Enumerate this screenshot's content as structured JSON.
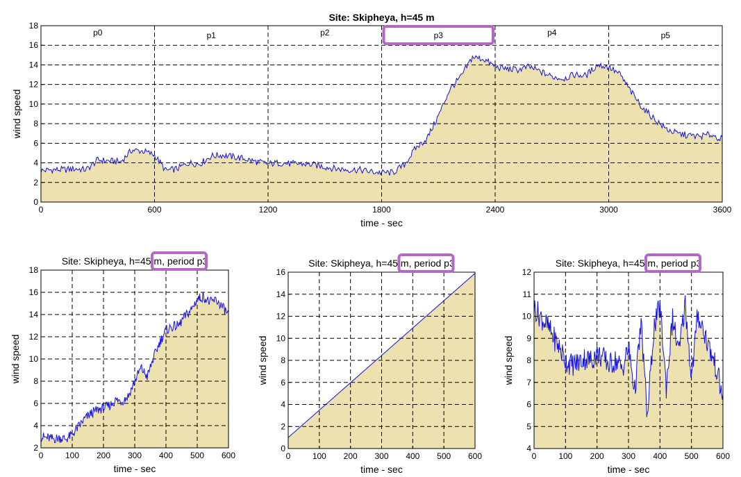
{
  "chart_data": [
    {
      "type": "area",
      "title": "Site: Skipheya, h=45 m",
      "xlabel": "time - sec",
      "ylabel": "wind speed",
      "xlim": [
        0,
        3600
      ],
      "ylim": [
        0,
        18
      ],
      "xticks": [
        0,
        600,
        1200,
        1800,
        2400,
        3000,
        3600
      ],
      "yticks": [
        0,
        2,
        4,
        6,
        8,
        10,
        12,
        14,
        16,
        18
      ],
      "grid": true,
      "period_labels": [
        "p0",
        "p1",
        "p2",
        "p3",
        "p4",
        "p5"
      ],
      "period_boundaries": [
        600,
        1200,
        1800,
        2400,
        3000
      ],
      "highlighted_period": "p3",
      "series": [
        {
          "x": [
            0,
            60,
            120,
            180,
            240,
            300,
            360,
            420,
            480,
            540,
            600,
            660,
            720,
            780,
            840,
            900,
            960,
            1020,
            1080,
            1140,
            1200,
            1260,
            1320,
            1380,
            1440,
            1500,
            1560,
            1620,
            1680,
            1740,
            1800,
            1860,
            1920,
            1980,
            2040,
            2100,
            2160,
            2220,
            2280,
            2340,
            2400,
            2460,
            2520,
            2580,
            2640,
            2700,
            2760,
            2820,
            2880,
            2940,
            3000,
            3060,
            3120,
            3180,
            3240,
            3300,
            3360,
            3420,
            3480,
            3540,
            3600
          ],
          "values": [
            3.2,
            3.3,
            3.3,
            3.4,
            3.3,
            4.3,
            4.2,
            4.1,
            5.3,
            5.2,
            4.8,
            3.2,
            3.4,
            4.0,
            3.9,
            4.7,
            4.8,
            4.6,
            4.4,
            4.1,
            3.9,
            4.0,
            3.9,
            3.9,
            3.8,
            3.6,
            3.4,
            3.3,
            3.3,
            3.1,
            3.0,
            3.0,
            3.8,
            5.5,
            6.5,
            8.8,
            11.5,
            12.8,
            14.8,
            14.6,
            13.8,
            13.6,
            13.5,
            13.8,
            13.3,
            12.8,
            12.6,
            13.0,
            12.9,
            14.0,
            13.8,
            13.0,
            11.2,
            9.6,
            8.5,
            7.5,
            7.0,
            6.8,
            6.7,
            6.9,
            6.4
          ]
        }
      ]
    },
    {
      "type": "area",
      "title": "Site: Skipheya, h=45 m, period p3",
      "xlabel": "time - sec",
      "ylabel": "wind speed",
      "xlim": [
        0,
        600
      ],
      "ylim": [
        2,
        18
      ],
      "xticks": [
        0,
        100,
        200,
        300,
        400,
        500,
        600
      ],
      "yticks": [
        2,
        4,
        6,
        8,
        10,
        12,
        14,
        16,
        18
      ],
      "grid": true,
      "highlight_text": "period p3",
      "series": [
        {
          "x": [
            0,
            20,
            40,
            60,
            80,
            100,
            120,
            140,
            160,
            180,
            200,
            220,
            240,
            260,
            280,
            300,
            320,
            340,
            360,
            380,
            400,
            420,
            440,
            460,
            480,
            500,
            520,
            540,
            560,
            580,
            600
          ],
          "values": [
            3.0,
            2.9,
            2.8,
            2.9,
            2.8,
            3.2,
            3.9,
            4.6,
            5.1,
            5.4,
            5.6,
            5.8,
            6.3,
            6.2,
            6.7,
            8.0,
            9.2,
            8.4,
            10.1,
            11.5,
            12.6,
            12.9,
            13.0,
            13.8,
            14.4,
            15.4,
            15.6,
            15.1,
            15.3,
            14.7,
            14.0
          ]
        }
      ]
    },
    {
      "type": "area",
      "title": "Site: Skipheya, h=45 m, period p3",
      "xlabel": "time - sec",
      "ylabel": "wind speed",
      "xlim": [
        0,
        600
      ],
      "ylim": [
        0,
        16
      ],
      "xticks": [
        0,
        100,
        200,
        300,
        400,
        500,
        600
      ],
      "yticks": [
        0,
        2,
        4,
        6,
        8,
        10,
        12,
        14,
        16
      ],
      "grid": true,
      "highlight_text": "period p3",
      "series": [
        {
          "x": [
            0,
            600
          ],
          "values": [
            1.0,
            15.9
          ]
        }
      ]
    },
    {
      "type": "area",
      "title": "Site: Skipheya, h=45 m, period p3",
      "xlabel": "time - sec",
      "ylabel": "wind speed",
      "xlim": [
        0,
        600
      ],
      "ylim": [
        4,
        12
      ],
      "xticks": [
        0,
        100,
        200,
        300,
        400,
        500,
        600
      ],
      "yticks": [
        4,
        5,
        6,
        7,
        8,
        9,
        10,
        11,
        12
      ],
      "grid": true,
      "highlight_text": "period p3",
      "series": [
        {
          "x": [
            0,
            20,
            40,
            60,
            80,
            100,
            120,
            140,
            160,
            180,
            200,
            220,
            240,
            260,
            280,
            300,
            320,
            340,
            360,
            380,
            400,
            420,
            440,
            460,
            480,
            500,
            520,
            540,
            560,
            580,
            600
          ],
          "values": [
            10.4,
            10.0,
            9.6,
            9.1,
            8.6,
            8.0,
            7.8,
            7.9,
            8.1,
            8.0,
            8.3,
            8.1,
            7.8,
            8.0,
            7.6,
            8.6,
            6.6,
            9.7,
            5.4,
            9.4,
            10.5,
            6.8,
            9.9,
            8.3,
            10.6,
            7.2,
            10.1,
            9.3,
            8.4,
            7.6,
            6.2
          ]
        }
      ]
    }
  ]
}
